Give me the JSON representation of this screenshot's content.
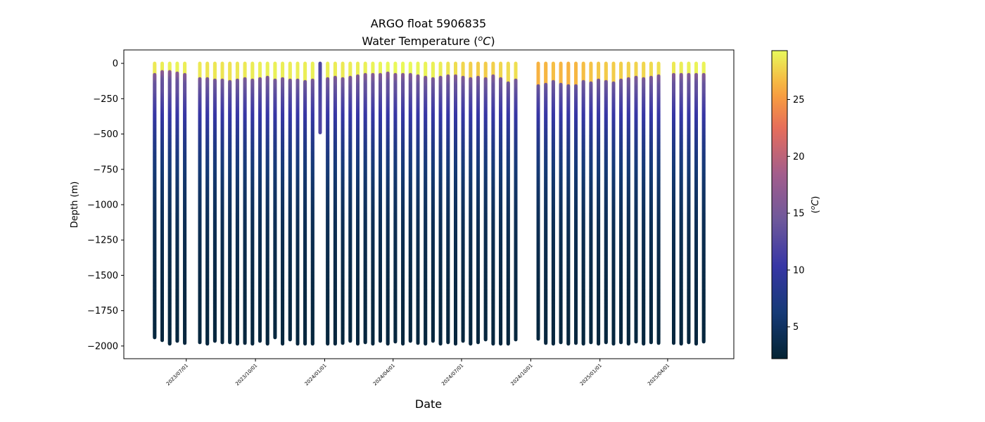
{
  "chart_data": {
    "type": "scatter",
    "title_line1": "ARGO float 5906835",
    "title_line2": "Water Temperature (",
    "title_unit_sup": "o",
    "title_unit": "C",
    "title_close": ")",
    "xlabel": "Date",
    "ylabel": "Depth (m)",
    "ylim": [
      -2090,
      95
    ],
    "xlim": [
      "2023-04-09",
      "2025-06-28"
    ],
    "y_ticks": [
      0,
      -250,
      -500,
      -750,
      -1000,
      -1250,
      -1500,
      -1750,
      -2000
    ],
    "y_tick_labels": [
      "0",
      "−250",
      "−500",
      "−750",
      "−1000",
      "−1250",
      "−1500",
      "−1750",
      "−2000"
    ],
    "x_ticks": [
      "2023-07-01",
      "2023-10-01",
      "2024-01-01",
      "2024-04-01",
      "2024-07-01",
      "2024-10-01",
      "2025-01-01",
      "2025-04-01"
    ],
    "x_tick_labels": [
      "2023/07/01",
      "2023/10/01",
      "2024/01/01",
      "2024/04/01",
      "2024/07/01",
      "2024/10/01",
      "2025/01/01",
      "2025/04/01"
    ],
    "colorbar": {
      "label_open": "(",
      "label_sup": "o",
      "label_unit": "C",
      "label_close": ")",
      "range": [
        2.2,
        29.3
      ],
      "ticks": [
        5,
        10,
        15,
        20,
        25
      ],
      "tick_labels": [
        "5",
        "10",
        "15",
        "20",
        "25"
      ],
      "colormap": "thermal"
    },
    "profiles": [
      {
        "date": "2023-05-20",
        "max_depth": -1940,
        "mld": -80,
        "sst": 28.6
      },
      {
        "date": "2023-05-30",
        "max_depth": -1960,
        "mld": -55,
        "sst": 28.8
      },
      {
        "date": "2023-06-09",
        "max_depth": -1985,
        "mld": -60,
        "sst": 28.9
      },
      {
        "date": "2023-06-19",
        "max_depth": -1965,
        "mld": -65,
        "sst": 29.0
      },
      {
        "date": "2023-06-29",
        "max_depth": -1980,
        "mld": -80,
        "sst": 28.8
      },
      {
        "date": "2023-07-19",
        "max_depth": -1975,
        "mld": -110,
        "sst": 28.6
      },
      {
        "date": "2023-07-29",
        "max_depth": -1985,
        "mld": -110,
        "sst": 28.4
      },
      {
        "date": "2023-08-08",
        "max_depth": -1965,
        "mld": -120,
        "sst": 28.5
      },
      {
        "date": "2023-08-18",
        "max_depth": -1975,
        "mld": -115,
        "sst": 28.4
      },
      {
        "date": "2023-08-28",
        "max_depth": -1975,
        "mld": -125,
        "sst": 28.3
      },
      {
        "date": "2023-09-07",
        "max_depth": -1985,
        "mld": -120,
        "sst": 28.5
      },
      {
        "date": "2023-09-17",
        "max_depth": -1980,
        "mld": -110,
        "sst": 28.6
      },
      {
        "date": "2023-09-27",
        "max_depth": -1985,
        "mld": -115,
        "sst": 28.7
      },
      {
        "date": "2023-10-07",
        "max_depth": -1965,
        "mld": -110,
        "sst": 28.8
      },
      {
        "date": "2023-10-17",
        "max_depth": -1985,
        "mld": -100,
        "sst": 28.9
      },
      {
        "date": "2023-10-27",
        "max_depth": -1940,
        "mld": -115,
        "sst": 28.9
      },
      {
        "date": "2023-11-06",
        "max_depth": -1985,
        "mld": -110,
        "sst": 28.8
      },
      {
        "date": "2023-11-16",
        "max_depth": -1955,
        "mld": -120,
        "sst": 28.7
      },
      {
        "date": "2023-11-26",
        "max_depth": -1985,
        "mld": -120,
        "sst": 28.8
      },
      {
        "date": "2023-12-06",
        "max_depth": -1985,
        "mld": -125,
        "sst": 28.8
      },
      {
        "date": "2023-12-16",
        "max_depth": -1985,
        "mld": -115,
        "sst": 28.9
      },
      {
        "date": "2023-12-26",
        "max_depth": -490,
        "mld": -490,
        "sst": 12.0
      },
      {
        "date": "2024-01-05",
        "max_depth": -1985,
        "mld": -110,
        "sst": 28.8
      },
      {
        "date": "2024-01-15",
        "max_depth": -1985,
        "mld": -100,
        "sst": 28.7
      },
      {
        "date": "2024-01-25",
        "max_depth": -1980,
        "mld": -110,
        "sst": 28.6
      },
      {
        "date": "2024-02-04",
        "max_depth": -1965,
        "mld": -100,
        "sst": 28.7
      },
      {
        "date": "2024-02-14",
        "max_depth": -1985,
        "mld": -90,
        "sst": 28.8
      },
      {
        "date": "2024-02-24",
        "max_depth": -1975,
        "mld": -80,
        "sst": 28.9
      },
      {
        "date": "2024-03-05",
        "max_depth": -1985,
        "mld": -80,
        "sst": 29.0
      },
      {
        "date": "2024-03-15",
        "max_depth": -1965,
        "mld": -80,
        "sst": 29.1
      },
      {
        "date": "2024-03-25",
        "max_depth": -1985,
        "mld": -70,
        "sst": 29.2
      },
      {
        "date": "2024-04-04",
        "max_depth": -1970,
        "mld": -80,
        "sst": 29.2
      },
      {
        "date": "2024-04-14",
        "max_depth": -1985,
        "mld": -75,
        "sst": 29.2
      },
      {
        "date": "2024-04-24",
        "max_depth": -1965,
        "mld": -80,
        "sst": 29.2
      },
      {
        "date": "2024-05-04",
        "max_depth": -1980,
        "mld": -85,
        "sst": 29.1
      },
      {
        "date": "2024-05-14",
        "max_depth": -1985,
        "mld": -100,
        "sst": 29.0
      },
      {
        "date": "2024-05-24",
        "max_depth": -1965,
        "mld": -110,
        "sst": 28.9
      },
      {
        "date": "2024-06-03",
        "max_depth": -1985,
        "mld": -100,
        "sst": 28.7
      },
      {
        "date": "2024-06-13",
        "max_depth": -1975,
        "mld": -90,
        "sst": 28.4
      },
      {
        "date": "2024-06-23",
        "max_depth": -1985,
        "mld": -90,
        "sst": 28.1
      },
      {
        "date": "2024-07-03",
        "max_depth": -1965,
        "mld": -100,
        "sst": 27.8
      },
      {
        "date": "2024-07-13",
        "max_depth": -1985,
        "mld": -110,
        "sst": 27.5
      },
      {
        "date": "2024-07-23",
        "max_depth": -1975,
        "mld": -100,
        "sst": 27.4
      },
      {
        "date": "2024-08-02",
        "max_depth": -1955,
        "mld": -110,
        "sst": 27.4
      },
      {
        "date": "2024-08-12",
        "max_depth": -1985,
        "mld": -90,
        "sst": 27.5
      },
      {
        "date": "2024-08-22",
        "max_depth": -1985,
        "mld": -110,
        "sst": 27.8
      },
      {
        "date": "2024-09-01",
        "max_depth": -1985,
        "mld": -140,
        "sst": 28.0
      },
      {
        "date": "2024-09-11",
        "max_depth": -1955,
        "mld": -120,
        "sst": 28.2
      },
      {
        "date": "2024-10-11",
        "max_depth": -1950,
        "mld": -160,
        "sst": 26.3
      },
      {
        "date": "2024-10-21",
        "max_depth": -1980,
        "mld": -150,
        "sst": 26.5
      },
      {
        "date": "2024-10-31",
        "max_depth": -1985,
        "mld": -130,
        "sst": 26.8
      },
      {
        "date": "2024-11-10",
        "max_depth": -1975,
        "mld": -150,
        "sst": 26.5
      },
      {
        "date": "2024-11-20",
        "max_depth": -1985,
        "mld": -160,
        "sst": 26.3
      },
      {
        "date": "2024-11-30",
        "max_depth": -1980,
        "mld": -155,
        "sst": 26.5
      },
      {
        "date": "2024-12-10",
        "max_depth": -1985,
        "mld": -130,
        "sst": 26.8
      },
      {
        "date": "2024-12-20",
        "max_depth": -1975,
        "mld": -140,
        "sst": 27.0
      },
      {
        "date": "2024-12-30",
        "max_depth": -1985,
        "mld": -120,
        "sst": 27.2
      },
      {
        "date": "2025-01-09",
        "max_depth": -1975,
        "mld": -130,
        "sst": 27.3
      },
      {
        "date": "2025-01-19",
        "max_depth": -1985,
        "mld": -140,
        "sst": 27.4
      },
      {
        "date": "2025-01-29",
        "max_depth": -1975,
        "mld": -120,
        "sst": 27.5
      },
      {
        "date": "2025-02-08",
        "max_depth": -1985,
        "mld": -110,
        "sst": 27.6
      },
      {
        "date": "2025-02-18",
        "max_depth": -1970,
        "mld": -100,
        "sst": 27.7
      },
      {
        "date": "2025-02-28",
        "max_depth": -1985,
        "mld": -110,
        "sst": 27.8
      },
      {
        "date": "2025-03-10",
        "max_depth": -1975,
        "mld": -100,
        "sst": 28.0
      },
      {
        "date": "2025-03-20",
        "max_depth": -1980,
        "mld": -90,
        "sst": 28.2
      },
      {
        "date": "2025-04-09",
        "max_depth": -1980,
        "mld": -80,
        "sst": 28.6
      },
      {
        "date": "2025-04-19",
        "max_depth": -1985,
        "mld": -75,
        "sst": 28.8
      },
      {
        "date": "2025-04-29",
        "max_depth": -1975,
        "mld": -80,
        "sst": 28.9
      },
      {
        "date": "2025-05-09",
        "max_depth": -1985,
        "mld": -75,
        "sst": 29.0
      },
      {
        "date": "2025-05-19",
        "max_depth": -1970,
        "mld": -80,
        "sst": 29.0
      }
    ]
  }
}
